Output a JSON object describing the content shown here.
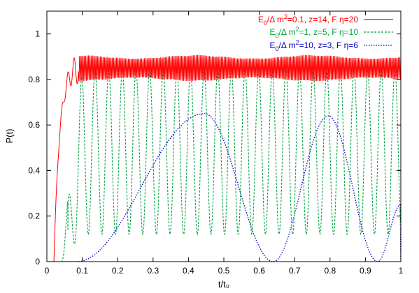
{
  "chart_data": {
    "type": "line",
    "xlabel": "t/t₀",
    "ylabel": "P(t)",
    "xlim": [
      0,
      1
    ],
    "ylim": [
      0,
      1.1
    ],
    "x_ticks": [
      "0",
      "0.1",
      "0.2",
      "0.3",
      "0.4",
      "0.5",
      "0.6",
      "0.7",
      "0.8",
      "0.9",
      "1"
    ],
    "y_ticks": [
      "0",
      "0.2",
      "0.4",
      "0.6",
      "0.8",
      "1"
    ],
    "grid": false,
    "legend_position": "top-right",
    "series": [
      {
        "name_parts": {
          "pre": "E",
          "sub": "0",
          "mid": "/Δ m",
          "sup": "2",
          "post": "=0.1, z=14, F η=20"
        },
        "color": "#ff0000",
        "dash": "solid",
        "description": "rapid rise near t/t0≈0.02, then fast oscillation between ~0.80 and ~0.90",
        "rise_start": 0.02,
        "rise_end": 0.09,
        "plateau_low": 0.8,
        "plateau_high": 0.9,
        "oscillations": 240
      },
      {
        "name_parts": {
          "pre": "E",
          "sub": "0",
          "mid": "/Δ m",
          "sup": "2",
          "post": "=1, z=5, F η=10"
        },
        "color": "#00a040",
        "dash": "dashed",
        "description": "oscillation starting ~t/t0=0.04, minima ~0.12, maxima ~0.84",
        "start": 0.04,
        "min": 0.12,
        "max": 0.84,
        "period": 0.0385
      },
      {
        "name_parts": {
          "pre": "E",
          "sub": "0",
          "mid": "/Δ m",
          "sup": "2",
          "post": "=10, z=3, F η=6"
        },
        "color": "#0000c0",
        "dash": "dotted",
        "description": "slow oscillation: peaks ~0.65 at 0.445 and ~0.64 at 0.795, zeros ~0.085, 0.64, 0.935",
        "points": [
          [
            0.085,
            0
          ],
          [
            0.445,
            0.65
          ],
          [
            0.64,
            0
          ],
          [
            0.795,
            0.64
          ],
          [
            0.935,
            0
          ],
          [
            1.0,
            0.25
          ]
        ]
      }
    ]
  }
}
